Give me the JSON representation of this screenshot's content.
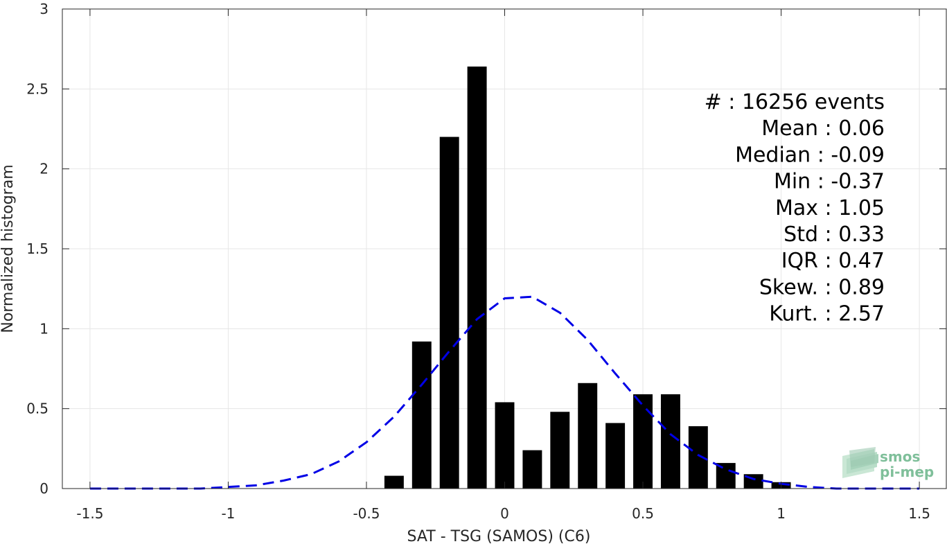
{
  "chart_data": {
    "type": "bar",
    "xlabel": "SAT - TSG (SAMOS) (C6)",
    "ylabel": "Normalized histogram",
    "xlim": [
      -1.6,
      1.6
    ],
    "ylim": [
      0,
      3
    ],
    "x_ticks": [
      -1.5,
      -1,
      -0.5,
      0,
      0.5,
      1,
      1.5
    ],
    "x_tick_labels": [
      "-1.5",
      "-1",
      "-0.5",
      "0",
      "0.5",
      "1",
      "1.5"
    ],
    "y_ticks": [
      0,
      0.5,
      1,
      1.5,
      2,
      2.5,
      3
    ],
    "y_tick_labels": [
      "0",
      "0.5",
      "1",
      "1.5",
      "2",
      "2.5",
      "3"
    ],
    "grid": true,
    "bar_width": 0.07,
    "series": [
      {
        "type": "bar",
        "color": "#000000",
        "x": [
          -0.4,
          -0.3,
          -0.2,
          -0.1,
          0.0,
          0.1,
          0.2,
          0.3,
          0.4,
          0.5,
          0.6,
          0.7,
          0.8,
          0.9,
          1.0
        ],
        "values": [
          0.08,
          0.92,
          2.2,
          2.64,
          0.54,
          0.24,
          0.48,
          0.66,
          0.41,
          0.59,
          0.59,
          0.39,
          0.16,
          0.09,
          0.04
        ]
      },
      {
        "type": "line",
        "style": "dashed",
        "color": "#0000e6",
        "x": [
          -1.5,
          -1.4,
          -1.3,
          -1.2,
          -1.1,
          -1.0,
          -0.9,
          -0.8,
          -0.7,
          -0.6,
          -0.5,
          -0.4,
          -0.3,
          -0.2,
          -0.1,
          0.0,
          0.1,
          0.2,
          0.3,
          0.4,
          0.5,
          0.6,
          0.7,
          0.8,
          0.9,
          1.0,
          1.1,
          1.2,
          1.3,
          1.4,
          1.5
        ],
        "values": [
          0.0,
          0.0,
          0.0,
          0.0,
          0.0,
          0.01,
          0.02,
          0.05,
          0.09,
          0.17,
          0.29,
          0.45,
          0.65,
          0.86,
          1.06,
          1.19,
          1.2,
          1.1,
          0.93,
          0.72,
          0.52,
          0.34,
          0.21,
          0.12,
          0.06,
          0.03,
          0.01,
          0.0,
          0.0,
          0.0,
          0.0
        ]
      }
    ],
    "stats": [
      "#  : 16256 events",
      "Mean : 0.06",
      "Median : -0.09",
      "Min : -0.37",
      "Max : 1.05",
      "Std : 0.33",
      "IQR : 0.47",
      "Skew. : 0.89",
      "Kurt. : 2.57"
    ]
  },
  "logo": {
    "line1": "smos",
    "line2": "pi-mep"
  }
}
